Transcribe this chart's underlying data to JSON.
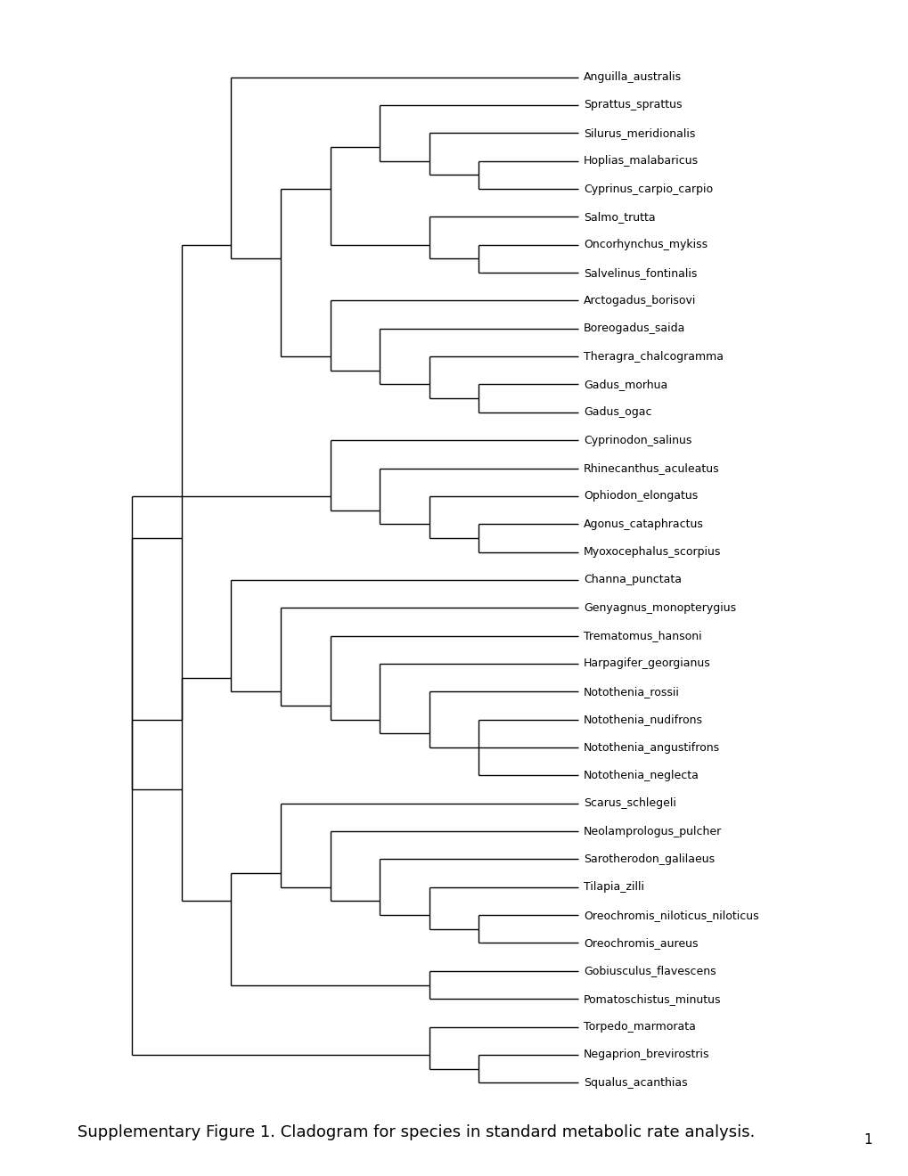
{
  "species": [
    "Anguilla_australis",
    "Sprattus_sprattus",
    "Silurus_meridionalis",
    "Hoplias_malabaricus",
    "Cyprinus_carpio_carpio",
    "Salmo_trutta",
    "Oncorhynchus_mykiss",
    "Salvelinus_fontinalis",
    "Arctogadus_borisovi",
    "Boreogadus_saida",
    "Theragra_chalcogramma",
    "Gadus_morhua",
    "Gadus_ogac",
    "Cyprinodon_salinus",
    "Rhinecanthus_aculeatus",
    "Ophiodon_elongatus",
    "Agonus_cataphractus",
    "Myoxocephalus_scorpius",
    "Channa_punctata",
    "Genyagnus_monopterygius",
    "Trematomus_hansoni",
    "Harpagifer_georgianus",
    "Notothenia_rossii",
    "Notothenia_nudifrons",
    "Notothenia_angustifrons",
    "Notothenia_neglecta",
    "Scarus_schlegeli",
    "Neolamprologus_pulcher",
    "Sarotherodon_galilaeus",
    "Tilapia_zilli",
    "Oreochromis_niloticus_niloticus",
    "Oreochromis_aureus",
    "Gobiusculus_flavescens",
    "Pomatoschistus_minutus",
    "Torpedo_marmorata",
    "Negaprion_brevirostris",
    "Squalus_acanthias"
  ],
  "caption": "Supplementary Figure 1. Cladogram for species in standard metabolic rate analysis.",
  "page_number": "1",
  "bg_color": "#ffffff",
  "line_color": "#000000",
  "text_color": "#000000",
  "label_fontsize": 9.0,
  "caption_fontsize": 13.0,
  "page_num_fontsize": 11,
  "line_width": 1.0,
  "fig_width": 10.2,
  "fig_height": 13.2
}
